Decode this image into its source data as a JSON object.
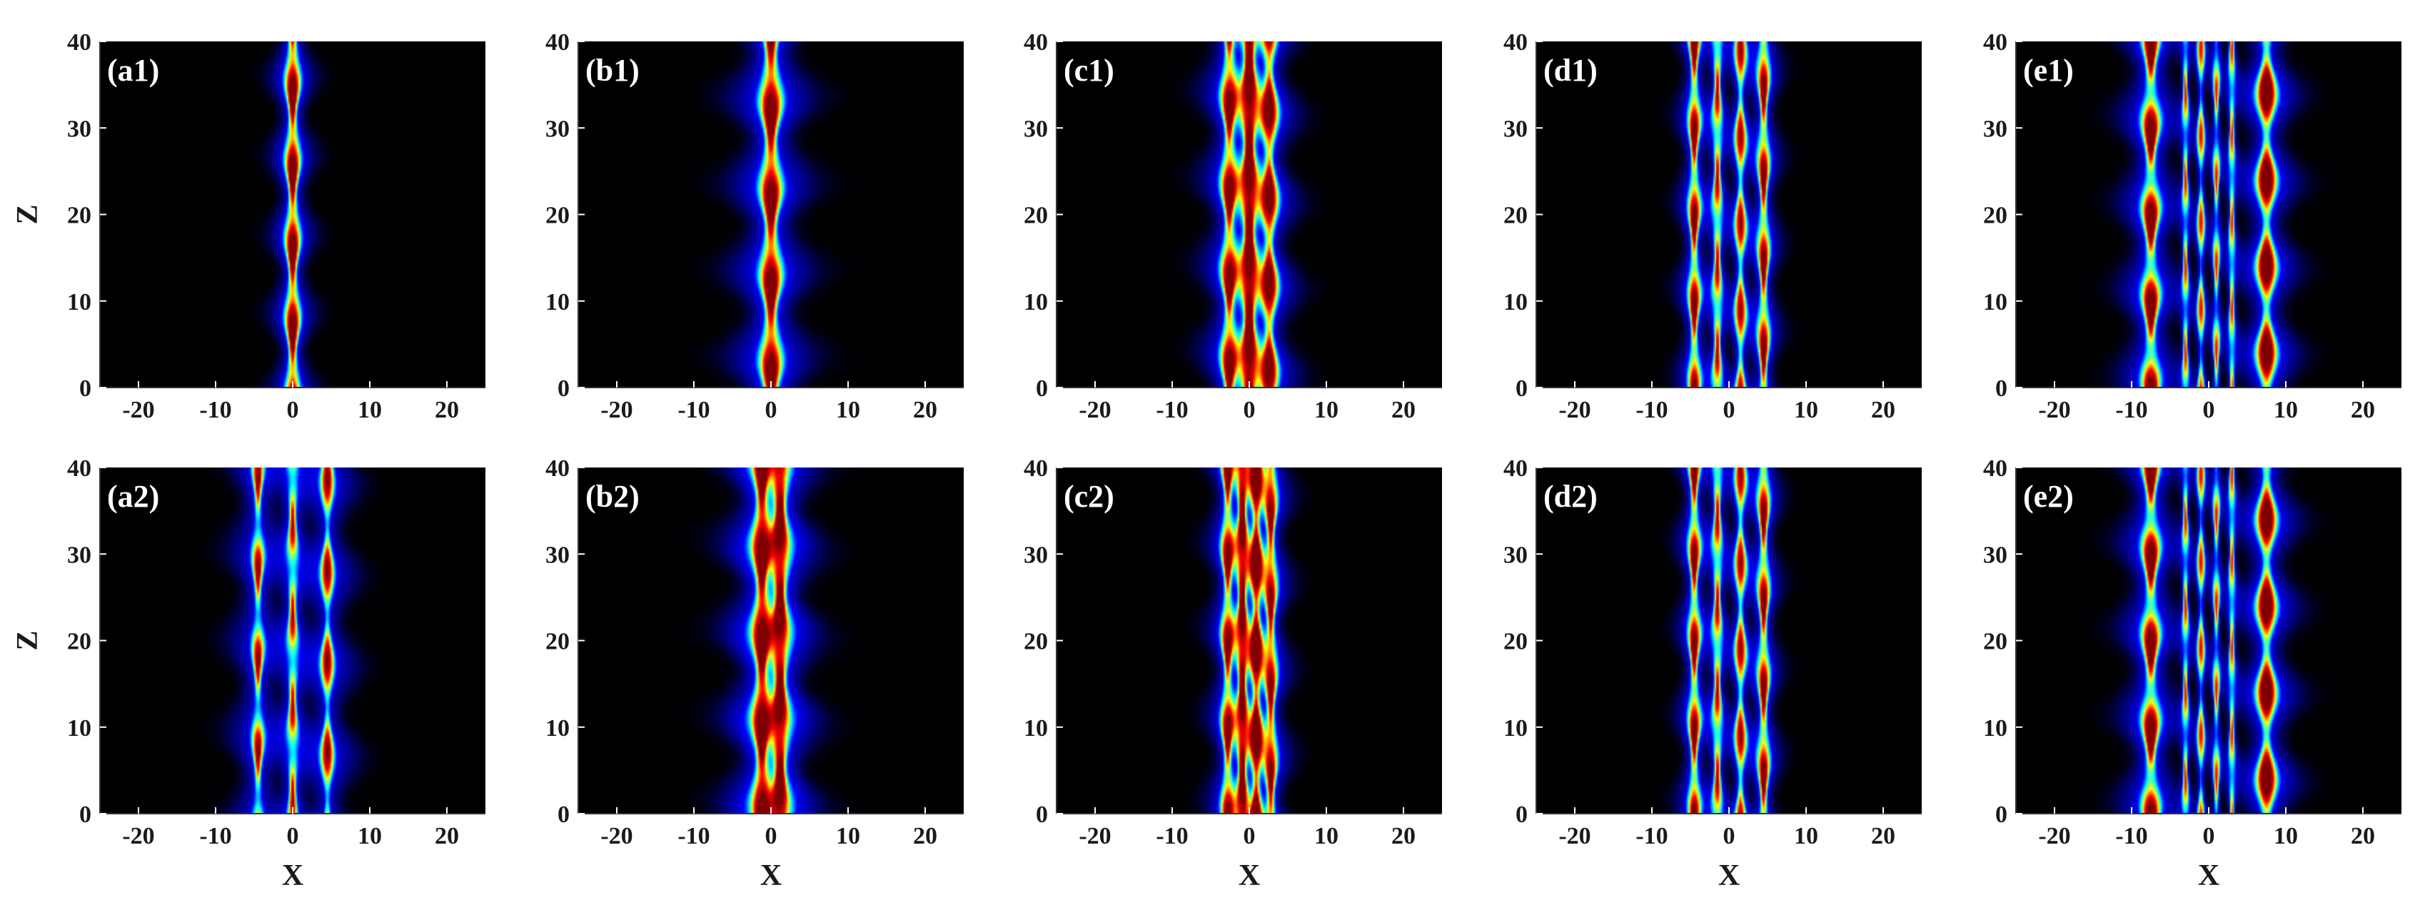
{
  "colors": {
    "background": "#000000",
    "colormap": [
      "#000000",
      "#00008f",
      "#0000ff",
      "#00ffff",
      "#ffff00",
      "#ff0000",
      "#800000"
    ],
    "panel_label": "#ffffff",
    "axis_text": "#1a1a1a"
  },
  "chart_data": [
    {
      "id": "a1",
      "type": "heatmap",
      "label": "(a1)",
      "xlabel": "",
      "ylabel": "Z",
      "xlim": [
        -25,
        25
      ],
      "ylim": [
        0,
        40
      ],
      "xticks": [
        -20,
        -10,
        0,
        10,
        20
      ],
      "yticks": [
        0,
        10,
        20,
        30,
        40
      ],
      "colormap": "jet",
      "beams": [
        {
          "x": 0,
          "width": 0.7,
          "amp": 1.0,
          "halo": 1.0
        }
      ],
      "modulation": {
        "period": 9.1,
        "phase": 1.8,
        "depth": 0.55
      }
    },
    {
      "id": "b1",
      "type": "heatmap",
      "label": "(b1)",
      "xlabel": "",
      "ylabel": "",
      "xlim": [
        -25,
        25
      ],
      "ylim": [
        0,
        40
      ],
      "xticks": [
        -20,
        -10,
        0,
        10,
        20
      ],
      "yticks": [
        0,
        10,
        20,
        30,
        40
      ],
      "colormap": "jet",
      "beams": [
        {
          "x": 0,
          "width": 1.0,
          "amp": 1.0,
          "halo": 1.3
        }
      ],
      "modulation": {
        "period": 10.0,
        "phase": 5.5,
        "depth": 0.5
      }
    },
    {
      "id": "c1",
      "type": "heatmap",
      "label": "(c1)",
      "xlabel": "",
      "ylabel": "",
      "xlim": [
        -25,
        25
      ],
      "ylim": [
        0,
        40
      ],
      "xticks": [
        -20,
        -10,
        0,
        10,
        20
      ],
      "yticks": [
        0,
        10,
        20,
        30,
        40
      ],
      "colormap": "jet",
      "beams": [
        {
          "x": -2.6,
          "width": 0.8,
          "amp": 0.85,
          "halo": 1.2
        },
        {
          "x": 0,
          "width": 0.8,
          "amp": 1.0,
          "halo": 1.0
        },
        {
          "x": 2.6,
          "width": 0.8,
          "amp": 0.85,
          "halo": 1.2
        }
      ],
      "modulation": {
        "period": 10.0,
        "phase": 5.0,
        "depth": 0.5
      }
    },
    {
      "id": "d1",
      "type": "heatmap",
      "label": "(d1)",
      "xlabel": "",
      "ylabel": "",
      "xlim": [
        -25,
        25
      ],
      "ylim": [
        0,
        40
      ],
      "xticks": [
        -20,
        -10,
        0,
        10,
        20
      ],
      "yticks": [
        0,
        10,
        20,
        30,
        40
      ],
      "colormap": "jet",
      "beams": [
        {
          "x": -4.5,
          "width": 0.6,
          "amp": 0.9,
          "halo": 1.0
        },
        {
          "x": -1.5,
          "width": 0.55,
          "amp": 0.75,
          "halo": 0.9
        },
        {
          "x": 1.5,
          "width": 0.55,
          "amp": 0.75,
          "halo": 0.9
        },
        {
          "x": 4.5,
          "width": 0.6,
          "amp": 0.9,
          "halo": 1.0
        }
      ],
      "modulation": {
        "period": 10.0,
        "phase": 0.5,
        "depth": 0.6
      }
    },
    {
      "id": "e1",
      "type": "heatmap",
      "label": "(e1)",
      "xlabel": "",
      "ylabel": "",
      "xlim": [
        -25,
        25
      ],
      "ylim": [
        0,
        40
      ],
      "xticks": [
        -20,
        -10,
        0,
        10,
        20
      ],
      "yticks": [
        0,
        10,
        20,
        30,
        40
      ],
      "colormap": "jet",
      "beams": [
        {
          "x": -7.5,
          "width": 0.85,
          "amp": 1.0,
          "halo": 1.2
        },
        {
          "x": -3.0,
          "width": 0.4,
          "amp": 0.65,
          "halo": 0.7
        },
        {
          "x": -1.0,
          "width": 0.4,
          "amp": 0.65,
          "halo": 0.7
        },
        {
          "x": 1.0,
          "width": 0.4,
          "amp": 0.65,
          "halo": 0.7
        },
        {
          "x": 3.0,
          "width": 0.4,
          "amp": 0.65,
          "halo": 0.7
        },
        {
          "x": 7.5,
          "width": 0.85,
          "amp": 1.0,
          "halo": 1.2
        }
      ],
      "modulation": {
        "period": 10.0,
        "phase": 0.5,
        "depth": 0.7
      }
    },
    {
      "id": "a2",
      "type": "heatmap",
      "label": "(a2)",
      "xlabel": "X",
      "ylabel": "Z",
      "xlim": [
        -25,
        25
      ],
      "ylim": [
        0,
        40
      ],
      "xticks": [
        -20,
        -10,
        0,
        10,
        20
      ],
      "yticks": [
        0,
        10,
        20,
        30,
        40
      ],
      "colormap": "jet",
      "beams": [
        {
          "x": -4.5,
          "width": 0.6,
          "amp": 0.8,
          "halo": 1.6
        },
        {
          "x": 0,
          "width": 0.6,
          "amp": 0.75,
          "halo": 1.2
        },
        {
          "x": 4.5,
          "width": 0.6,
          "amp": 0.8,
          "halo": 1.6
        }
      ],
      "modulation": {
        "period": 10.5,
        "phase": 2.0,
        "depth": 0.7
      }
    },
    {
      "id": "b2",
      "type": "heatmap",
      "label": "(b2)",
      "xlabel": "X",
      "ylabel": "",
      "xlim": [
        -25,
        25
      ],
      "ylim": [
        0,
        40
      ],
      "xticks": [
        -20,
        -10,
        0,
        10,
        20
      ],
      "yticks": [
        0,
        10,
        20,
        30,
        40
      ],
      "colormap": "jet",
      "beams": [
        {
          "x": -1.2,
          "width": 0.9,
          "amp": 0.9,
          "halo": 1.4
        },
        {
          "x": 1.2,
          "width": 0.9,
          "amp": 0.9,
          "halo": 1.4
        }
      ],
      "modulation": {
        "period": 10.0,
        "phase": 0.5,
        "depth": 0.45
      }
    },
    {
      "id": "c2",
      "type": "heatmap",
      "label": "(c2)",
      "xlabel": "X",
      "ylabel": "",
      "xlim": [
        -25,
        25
      ],
      "ylim": [
        0,
        40
      ],
      "xticks": [
        -20,
        -10,
        0,
        10,
        20
      ],
      "yticks": [
        0,
        10,
        20,
        30,
        40
      ],
      "colormap": "jet",
      "beams": [
        {
          "x": -2.8,
          "width": 0.65,
          "amp": 0.85,
          "halo": 1.1
        },
        {
          "x": -0.9,
          "width": 0.6,
          "amp": 0.95,
          "halo": 0.9
        },
        {
          "x": 0.9,
          "width": 0.6,
          "amp": 0.95,
          "halo": 0.9
        },
        {
          "x": 2.8,
          "width": 0.65,
          "amp": 0.85,
          "halo": 1.1
        }
      ],
      "modulation": {
        "period": 10.0,
        "phase": 0.5,
        "depth": 0.55
      }
    },
    {
      "id": "d2",
      "type": "heatmap",
      "label": "(d2)",
      "xlabel": "X",
      "ylabel": "",
      "xlim": [
        -25,
        25
      ],
      "ylim": [
        0,
        40
      ],
      "xticks": [
        -20,
        -10,
        0,
        10,
        20
      ],
      "yticks": [
        0,
        10,
        20,
        30,
        40
      ],
      "colormap": "jet",
      "beams": [
        {
          "x": -4.5,
          "width": 0.6,
          "amp": 0.9,
          "halo": 1.0
        },
        {
          "x": -1.5,
          "width": 0.55,
          "amp": 0.75,
          "halo": 0.9
        },
        {
          "x": 1.5,
          "width": 0.55,
          "amp": 0.75,
          "halo": 0.9
        },
        {
          "x": 4.5,
          "width": 0.6,
          "amp": 0.9,
          "halo": 1.0
        }
      ],
      "modulation": {
        "period": 10.0,
        "phase": 0.5,
        "depth": 0.6
      }
    },
    {
      "id": "e2",
      "type": "heatmap",
      "label": "(e2)",
      "xlabel": "X",
      "ylabel": "",
      "xlim": [
        -25,
        25
      ],
      "ylim": [
        0,
        40
      ],
      "xticks": [
        -20,
        -10,
        0,
        10,
        20
      ],
      "yticks": [
        0,
        10,
        20,
        30,
        40
      ],
      "colormap": "jet",
      "beams": [
        {
          "x": -7.5,
          "width": 0.85,
          "amp": 1.0,
          "halo": 1.2
        },
        {
          "x": -3.0,
          "width": 0.4,
          "amp": 0.65,
          "halo": 0.7
        },
        {
          "x": -1.0,
          "width": 0.4,
          "amp": 0.65,
          "halo": 0.7
        },
        {
          "x": 1.0,
          "width": 0.4,
          "amp": 0.65,
          "halo": 0.7
        },
        {
          "x": 3.0,
          "width": 0.4,
          "amp": 0.65,
          "halo": 0.7
        },
        {
          "x": 7.5,
          "width": 0.85,
          "amp": 1.0,
          "halo": 1.2
        }
      ],
      "modulation": {
        "period": 10.0,
        "phase": 0.5,
        "depth": 0.7
      }
    }
  ]
}
